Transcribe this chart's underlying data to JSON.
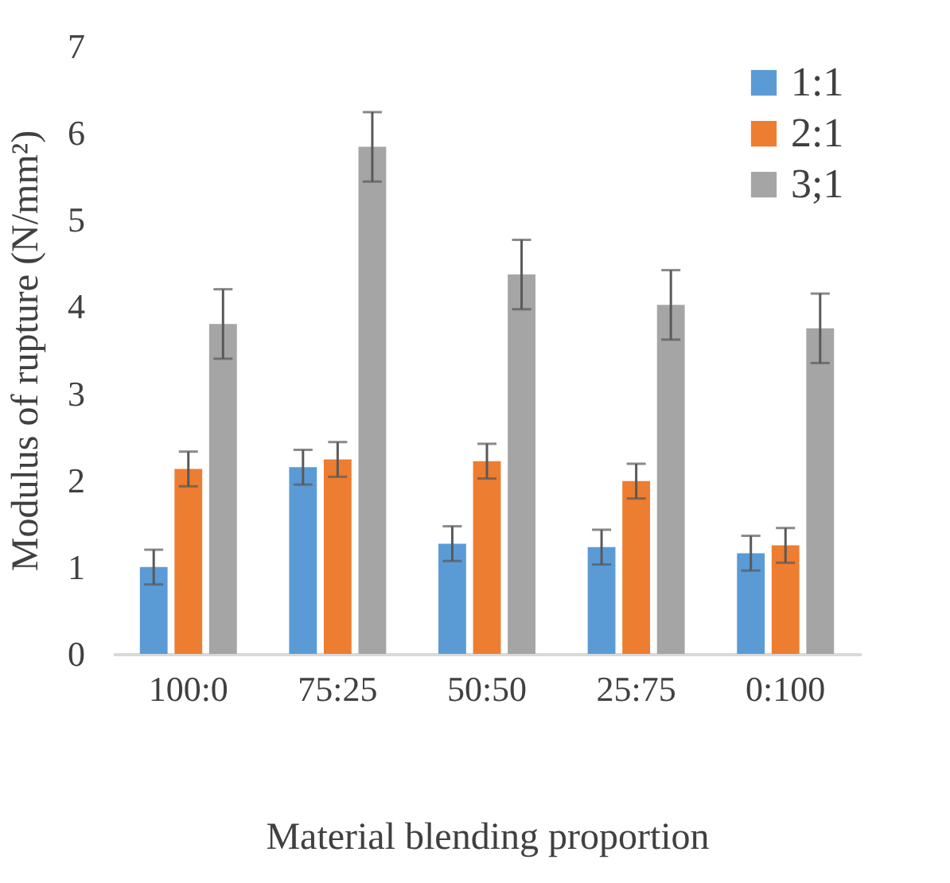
{
  "chart_data": {
    "type": "bar",
    "xlabel": "Material blending proportion",
    "ylabel": "Modulus of rupture (N/mm²)",
    "categories": [
      "100:0",
      "75:25",
      "50:50",
      "25:75",
      "0:100"
    ],
    "ylim": [
      0,
      7
    ],
    "yticks": [
      0,
      1,
      2,
      3,
      4,
      5,
      6,
      7
    ],
    "grid": false,
    "legend": "top right",
    "series": [
      {
        "name": "1:1",
        "color": "#5b9bd5",
        "values": [
          1.0,
          2.15,
          1.27,
          1.23,
          1.16
        ],
        "errors": [
          0.2,
          0.2,
          0.2,
          0.2,
          0.2
        ]
      },
      {
        "name": "2:1",
        "color": "#ed7d31",
        "values": [
          2.13,
          2.24,
          2.22,
          1.99,
          1.25
        ],
        "errors": [
          0.2,
          0.2,
          0.2,
          0.2,
          0.2
        ]
      },
      {
        "name": "3;1",
        "color": "#a5a5a5",
        "values": [
          3.8,
          5.84,
          4.37,
          4.02,
          3.75
        ],
        "errors": [
          0.4,
          0.4,
          0.4,
          0.4,
          0.4
        ]
      }
    ]
  }
}
